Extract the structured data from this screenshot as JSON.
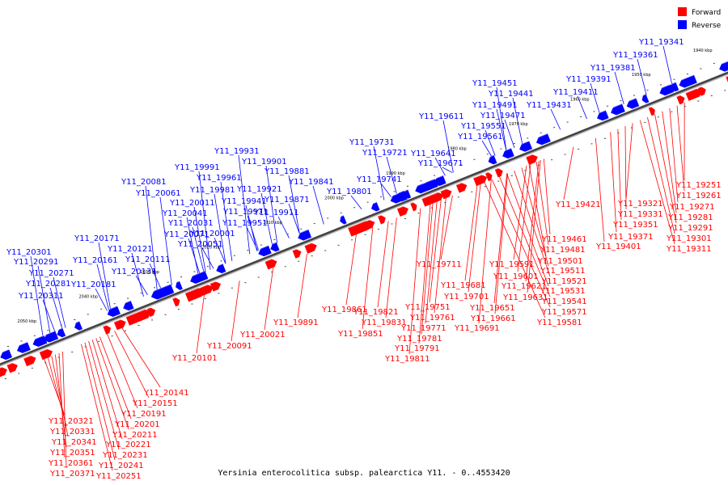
{
  "caption": "Yersinia enterocolitica subsp. palearctica Y11. - 0..4553420",
  "legend": [
    {
      "label": "Forward",
      "color": "#ff0000"
    },
    {
      "label": "Reverse",
      "color": "#0000ff"
    }
  ],
  "ticks": [
    "1940 kbp",
    "1950 kbp",
    "1960 kbp",
    "1970 kbp",
    "1980 kbp",
    "1990 kbp",
    "2000 kbp",
    "2010 kbp",
    "2020 kbp",
    "2030 kbp",
    "2040 kbp",
    "2050 kbp"
  ],
  "reverse_labels": [
    "Y11_19341",
    "Y11_19361",
    "Y11_19381",
    "Y11_19391",
    "Y11_19411",
    "Y11_19451",
    "Y11_19441",
    "Y11_19491",
    "Y11_19431",
    "Y11_19471",
    "Y11_19611",
    "Y11_19551",
    "Y11_19561",
    "Y11_19731",
    "Y11_19721",
    "Y11_19641",
    "Y11_19671",
    "Y11_19741",
    "Y11_19801",
    "Y11_19931",
    "Y11_19901",
    "Y11_19991",
    "Y11_19881",
    "Y11_19961",
    "Y11_19841",
    "Y11_20081",
    "Y11_19981",
    "Y11_19921",
    "Y11_20061",
    "Y11_19871",
    "Y11_20011",
    "Y11_19941",
    "Y11_20041",
    "Y11_19971",
    "Y11_19911",
    "Y11_20031",
    "Y11_19951",
    "Y11_20071",
    "Y11_20001",
    "Y11_20171",
    "Y11_20051",
    "Y11_20121",
    "Y11_20301",
    "Y11_20291",
    "Y11_20161",
    "Y11_20111",
    "Y11_20131",
    "Y11_20271",
    "Y11_20281",
    "Y11_20181",
    "Y11_20311"
  ],
  "forward_labels_lower": [
    "Y11_19891",
    "Y11_19861",
    "Y11_19821",
    "Y11_19831",
    "Y11_19851",
    "Y11_19751",
    "Y11_19711",
    "Y11_19761",
    "Y11_19771",
    "Y11_19781",
    "Y11_19791",
    "Y11_19811",
    "Y11_19681",
    "Y11_19701",
    "Y11_19651",
    "Y11_19661",
    "Y11_19691",
    "Y11_19591",
    "Y11_19601",
    "Y11_19621",
    "Y11_19631",
    "Y11_20021",
    "Y11_20091",
    "Y11_20101"
  ],
  "forward_labels_right": [
    "Y11_19251",
    "Y11_19261",
    "Y11_19271",
    "Y11_19281",
    "Y11_19291",
    "Y11_19321",
    "Y11_19331",
    "Y11_19351",
    "Y11_19301",
    "Y11_19311",
    "Y11_19371",
    "Y11_19401",
    "Y11_19421",
    "Y11_19461",
    "Y11_19481",
    "Y11_19501",
    "Y11_19511",
    "Y11_19521",
    "Y11_19531",
    "Y11_19541",
    "Y11_19571",
    "Y11_19581"
  ],
  "forward_labels_bottom": [
    "Y11_20141",
    "Y11_20151",
    "Y11_20191",
    "Y11_20201",
    "Y11_20211",
    "Y11_20221",
    "Y11_20231",
    "Y11_20241",
    "Y11_20251",
    "Y11_20321",
    "Y11_20331",
    "Y11_20341",
    "Y11_20351",
    "Y11_20361",
    "Y11_20371"
  ],
  "colors": {
    "forward": "#ff0000",
    "reverse": "#0000ff",
    "axis": "#555555"
  }
}
